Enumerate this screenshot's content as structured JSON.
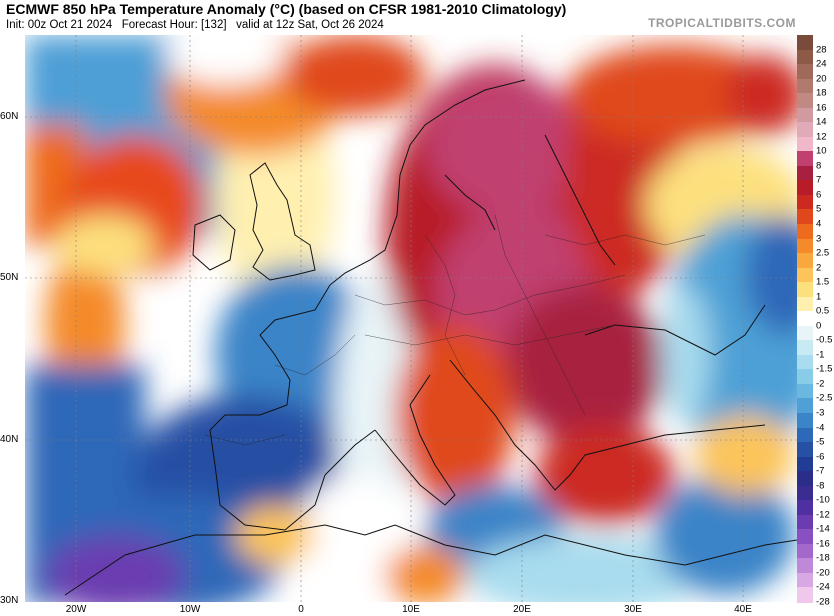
{
  "header": {
    "title": "ECMWF 850 hPa Temperature Anomaly (°C) (based on CFSR 1981-2010 Climatology)",
    "init": "Init: 00z Oct 21 2024",
    "forecast_hour": "Forecast Hour: [132]",
    "valid": "valid at 12z Sat, Oct 26 2024",
    "brand": "TROPICALTIDBITS.COM"
  },
  "axes": {
    "lat_labels": [
      "60N",
      "50N",
      "40N",
      "30N"
    ],
    "lon_labels": [
      "20W",
      "10W",
      "0",
      "10E",
      "20E",
      "30E",
      "40E"
    ]
  },
  "colorbar": {
    "labels": [
      "28",
      "24",
      "20",
      "18",
      "16",
      "14",
      "12",
      "10",
      "8",
      "7",
      "6",
      "5",
      "4",
      "3",
      "2.5",
      "2",
      "1.5",
      "1",
      "0.5",
      "0",
      "-0.5",
      "-1",
      "-1.5",
      "-2",
      "-2.5",
      "-3",
      "-4",
      "-5",
      "-6",
      "-7",
      "-8",
      "-10",
      "-12",
      "-14",
      "-16",
      "-18",
      "-20",
      "-24",
      "-28"
    ],
    "colors": [
      "#7a4a3a",
      "#8e5a48",
      "#a06a5a",
      "#b07a6e",
      "#c08a82",
      "#d09aa0",
      "#e0aab8",
      "#f0b8c8",
      "#c04070",
      "#a82040",
      "#b81c28",
      "#cc2a20",
      "#e0481c",
      "#ee6a1c",
      "#f48a2a",
      "#f8a83c",
      "#fcc45a",
      "#fde07e",
      "#fff0b0",
      "#ffffff",
      "#e8f4f8",
      "#c8eaf2",
      "#a8dcee",
      "#88cce8",
      "#6ab8e0",
      "#4ea0d6",
      "#3a84c8",
      "#2e68b8",
      "#2650a4",
      "#203c94",
      "#2a2e88",
      "#3a2c90",
      "#5030a0",
      "#6a3cb0",
      "#8850c0",
      "#a468cc",
      "#c088d8",
      "#d8a8e4",
      "#f0c8ec"
    ]
  }
}
